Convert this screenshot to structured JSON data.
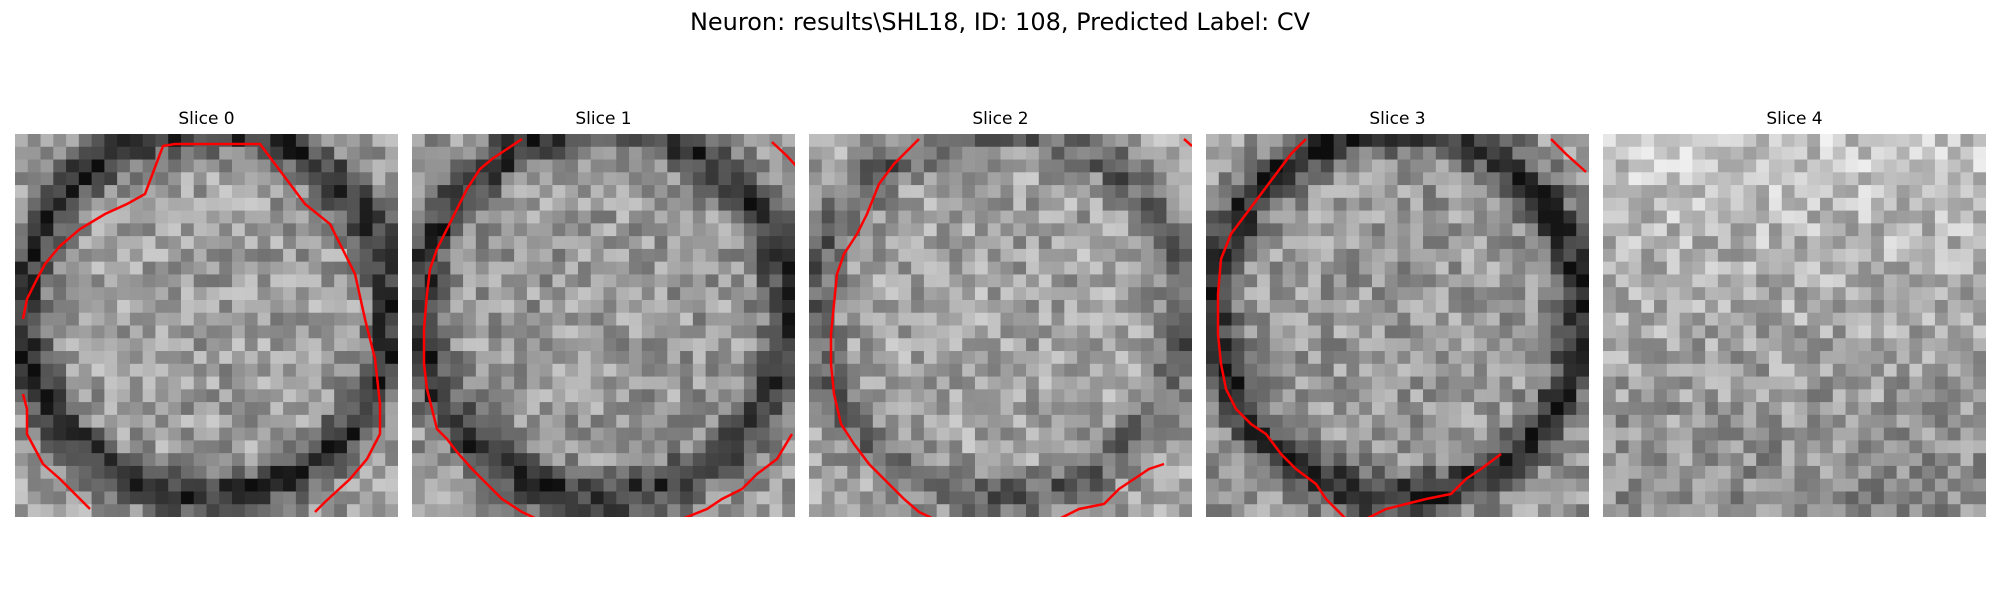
{
  "suptitle": "Neuron: results\\SHL18, ID: 108, Predicted Label: CV",
  "colors": {
    "contour": "#ff0000",
    "background": "#ffffff"
  },
  "panels": [
    {
      "title": "Slice 0",
      "brightness": 0.62,
      "ring": 1.0,
      "has_contour": true
    },
    {
      "title": "Slice 1",
      "brightness": 0.6,
      "ring": 0.9,
      "has_contour": true
    },
    {
      "title": "Slice 2",
      "brightness": 0.64,
      "ring": 0.6,
      "has_contour": true
    },
    {
      "title": "Slice 3",
      "brightness": 0.6,
      "ring": 1.0,
      "has_contour": true
    },
    {
      "title": "Slice 4",
      "brightness": 0.78,
      "ring": 0.0,
      "has_contour": false
    }
  ]
}
